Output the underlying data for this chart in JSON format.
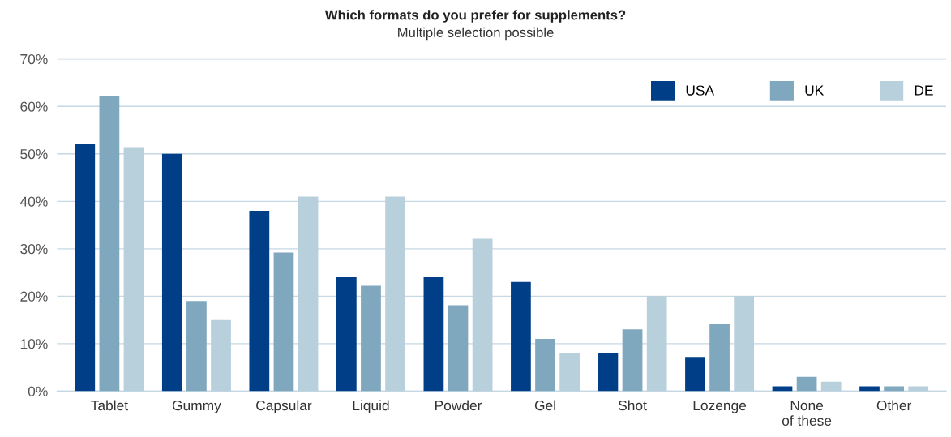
{
  "chart_data": {
    "type": "bar",
    "title": "Which formats do you prefer for supplements?",
    "subtitle": "Multiple selection possible",
    "categories": [
      "Tablet",
      "Gummy",
      "Capsular",
      "Liquid",
      "Powder",
      "Gel",
      "Shot",
      "Lozenge",
      "None\nof these",
      "Other"
    ],
    "series": [
      {
        "name": "USA",
        "color": "#003f87",
        "values": [
          52,
          50,
          38,
          24,
          24,
          23,
          8,
          7.2,
          1,
          1
        ]
      },
      {
        "name": "UK",
        "color": "#7fa7bd",
        "values": [
          62.1,
          19,
          29.2,
          22.2,
          18.1,
          11,
          13,
          14.1,
          3,
          1
        ]
      },
      {
        "name": "DE",
        "color": "#b8cfdc",
        "values": [
          51.4,
          15,
          41,
          41,
          32.1,
          8,
          20,
          20,
          2,
          1
        ]
      }
    ],
    "ylim": [
      0,
      70
    ],
    "yticks": [
      {
        "value": 0,
        "label": "0%"
      },
      {
        "value": 10,
        "label": "10%"
      },
      {
        "value": 20,
        "label": "20%"
      },
      {
        "value": 30,
        "label": "30%"
      },
      {
        "value": 40,
        "label": "40%"
      },
      {
        "value": 50,
        "label": "50%"
      },
      {
        "value": 60,
        "label": "60%"
      },
      {
        "value": 70,
        "label": "70%"
      }
    ],
    "grid": "y",
    "legend": "top right"
  }
}
